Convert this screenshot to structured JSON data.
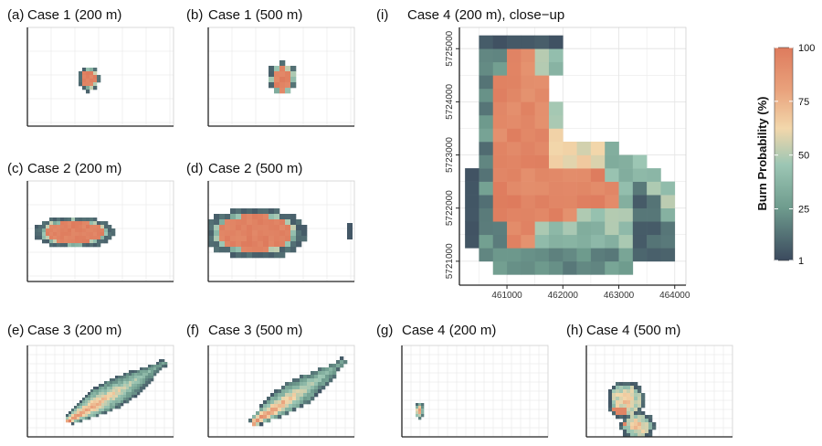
{
  "chart_data": {
    "type": "heatmap",
    "colors": {
      "low": "#3b4a5e",
      "mid_low": "#6f9c8e",
      "mid": "#9cc6b4",
      "mid_high": "#f2d7ab",
      "high": "#de7b5d",
      "grid": "#e6e6e6",
      "frame": "#222222"
    },
    "panels": [
      {
        "id": "a",
        "label": "(a)",
        "title": "Case 1 (200 m)",
        "shape": "circle",
        "cx": 0.42,
        "cy": 0.52,
        "rx": 0.07,
        "ry": 0.13,
        "cell": 4
      },
      {
        "id": "b",
        "label": "(b)",
        "title": "Case 1 (500 m)",
        "shape": "circle",
        "cx": 0.52,
        "cy": 0.52,
        "rx": 0.1,
        "ry": 0.17,
        "cell": 6
      },
      {
        "id": "c",
        "label": "(c)",
        "title": "Case 2 (200 m)",
        "shape": "ellipse",
        "cx": 0.32,
        "cy": 0.52,
        "rx": 0.28,
        "ry": 0.16,
        "cell": 4
      },
      {
        "id": "d",
        "label": "(d)",
        "title": "Case 2 (500 m)",
        "shape": "ellipse",
        "cx": 0.33,
        "cy": 0.53,
        "rx": 0.36,
        "ry": 0.26,
        "cell": 6
      },
      {
        "id": "e",
        "label": "(e)",
        "title": "Case 3 (200 m)",
        "shape": "plume",
        "x0": 0.28,
        "y0": 0.84,
        "x1": 0.95,
        "y1": 0.18,
        "width": 0.11,
        "cell": 3
      },
      {
        "id": "f",
        "label": "(f)",
        "title": "Case 3 (500 m)",
        "shape": "plume",
        "x0": 0.3,
        "y0": 0.86,
        "x1": 0.94,
        "y1": 0.16,
        "width": 0.1,
        "cell": 4
      },
      {
        "id": "g",
        "label": "(g)",
        "title": "Case 4 (200 m)",
        "shape": "small",
        "cx": 0.12,
        "cy": 0.72,
        "rx": 0.035,
        "ry": 0.09,
        "cell": 3
      },
      {
        "id": "h",
        "label": "(h)",
        "title": "Case 4 (500 m)",
        "shape": "blob",
        "cx": 0.27,
        "cy": 0.6,
        "rx": 0.13,
        "ry": 0.22,
        "cell": 4
      },
      {
        "id": "i",
        "label": "(i)",
        "title": "Case 4 (200 m), close−up",
        "x_ticks": [
          "461000",
          "462000",
          "463000",
          "464000"
        ],
        "x_tick_values": [
          461000,
          462000,
          463000,
          464000
        ],
        "y_ticks": [
          "5721000",
          "5722000",
          "5723000",
          "5724000",
          "5725000"
        ],
        "y_tick_values": [
          5721000,
          5722000,
          5723000,
          5724000,
          5725000
        ],
        "xlim": [
          460150,
          464200
        ],
        "ylim": [
          5720550,
          5725400
        ]
      }
    ],
    "legend": {
      "title": "Burn Probability (%)",
      "ticks": [
        "100",
        "75",
        "50",
        "25",
        "1"
      ],
      "tick_values": [
        100,
        75,
        50,
        25,
        1
      ],
      "range": [
        1,
        100
      ]
    }
  }
}
